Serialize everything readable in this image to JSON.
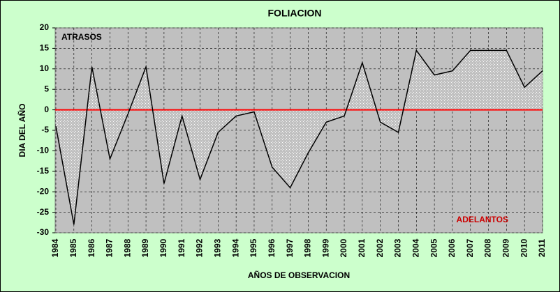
{
  "chart_data": {
    "type": "area",
    "title": "FOLIACION",
    "x_label": "AÑOS DE OBSERVACION",
    "y_label": "DIA DEL AÑO",
    "annotations": [
      {
        "text": "ATRASOS",
        "color": "#000000"
      },
      {
        "text": "ADELANTOS",
        "color": "#cc0000"
      }
    ],
    "categories": [
      "1984",
      "1985",
      "1986",
      "1987",
      "1988",
      "1989",
      "1990",
      "1991",
      "1992",
      "1993",
      "1994",
      "1995",
      "1996",
      "1997",
      "1998",
      "1999",
      "2000",
      "2001",
      "2002",
      "2003",
      "2004",
      "2005",
      "2006",
      "2007",
      "2008",
      "2009",
      "2010",
      "2011"
    ],
    "series": [
      {
        "name": "FOLIACION",
        "color": "#000000",
        "values": [
          -4,
          -28,
          10.5,
          -12,
          -1,
          10.5,
          -18,
          -1.5,
          -17,
          -5.5,
          -1.5,
          -0.5,
          -14,
          -19,
          -10.5,
          -3,
          -1.5,
          11.5,
          -3,
          -5.5,
          14.5,
          8.5,
          9.5,
          14.5,
          14.5,
          14.5,
          5.5,
          9.5
        ]
      }
    ],
    "ylim": [
      -30,
      20
    ],
    "yticks": [
      -30,
      -25,
      -20,
      -15,
      -10,
      -5,
      0,
      5,
      10,
      15,
      20
    ],
    "grid": true,
    "reference_line": {
      "value": 0,
      "color": "#ff0000"
    }
  }
}
